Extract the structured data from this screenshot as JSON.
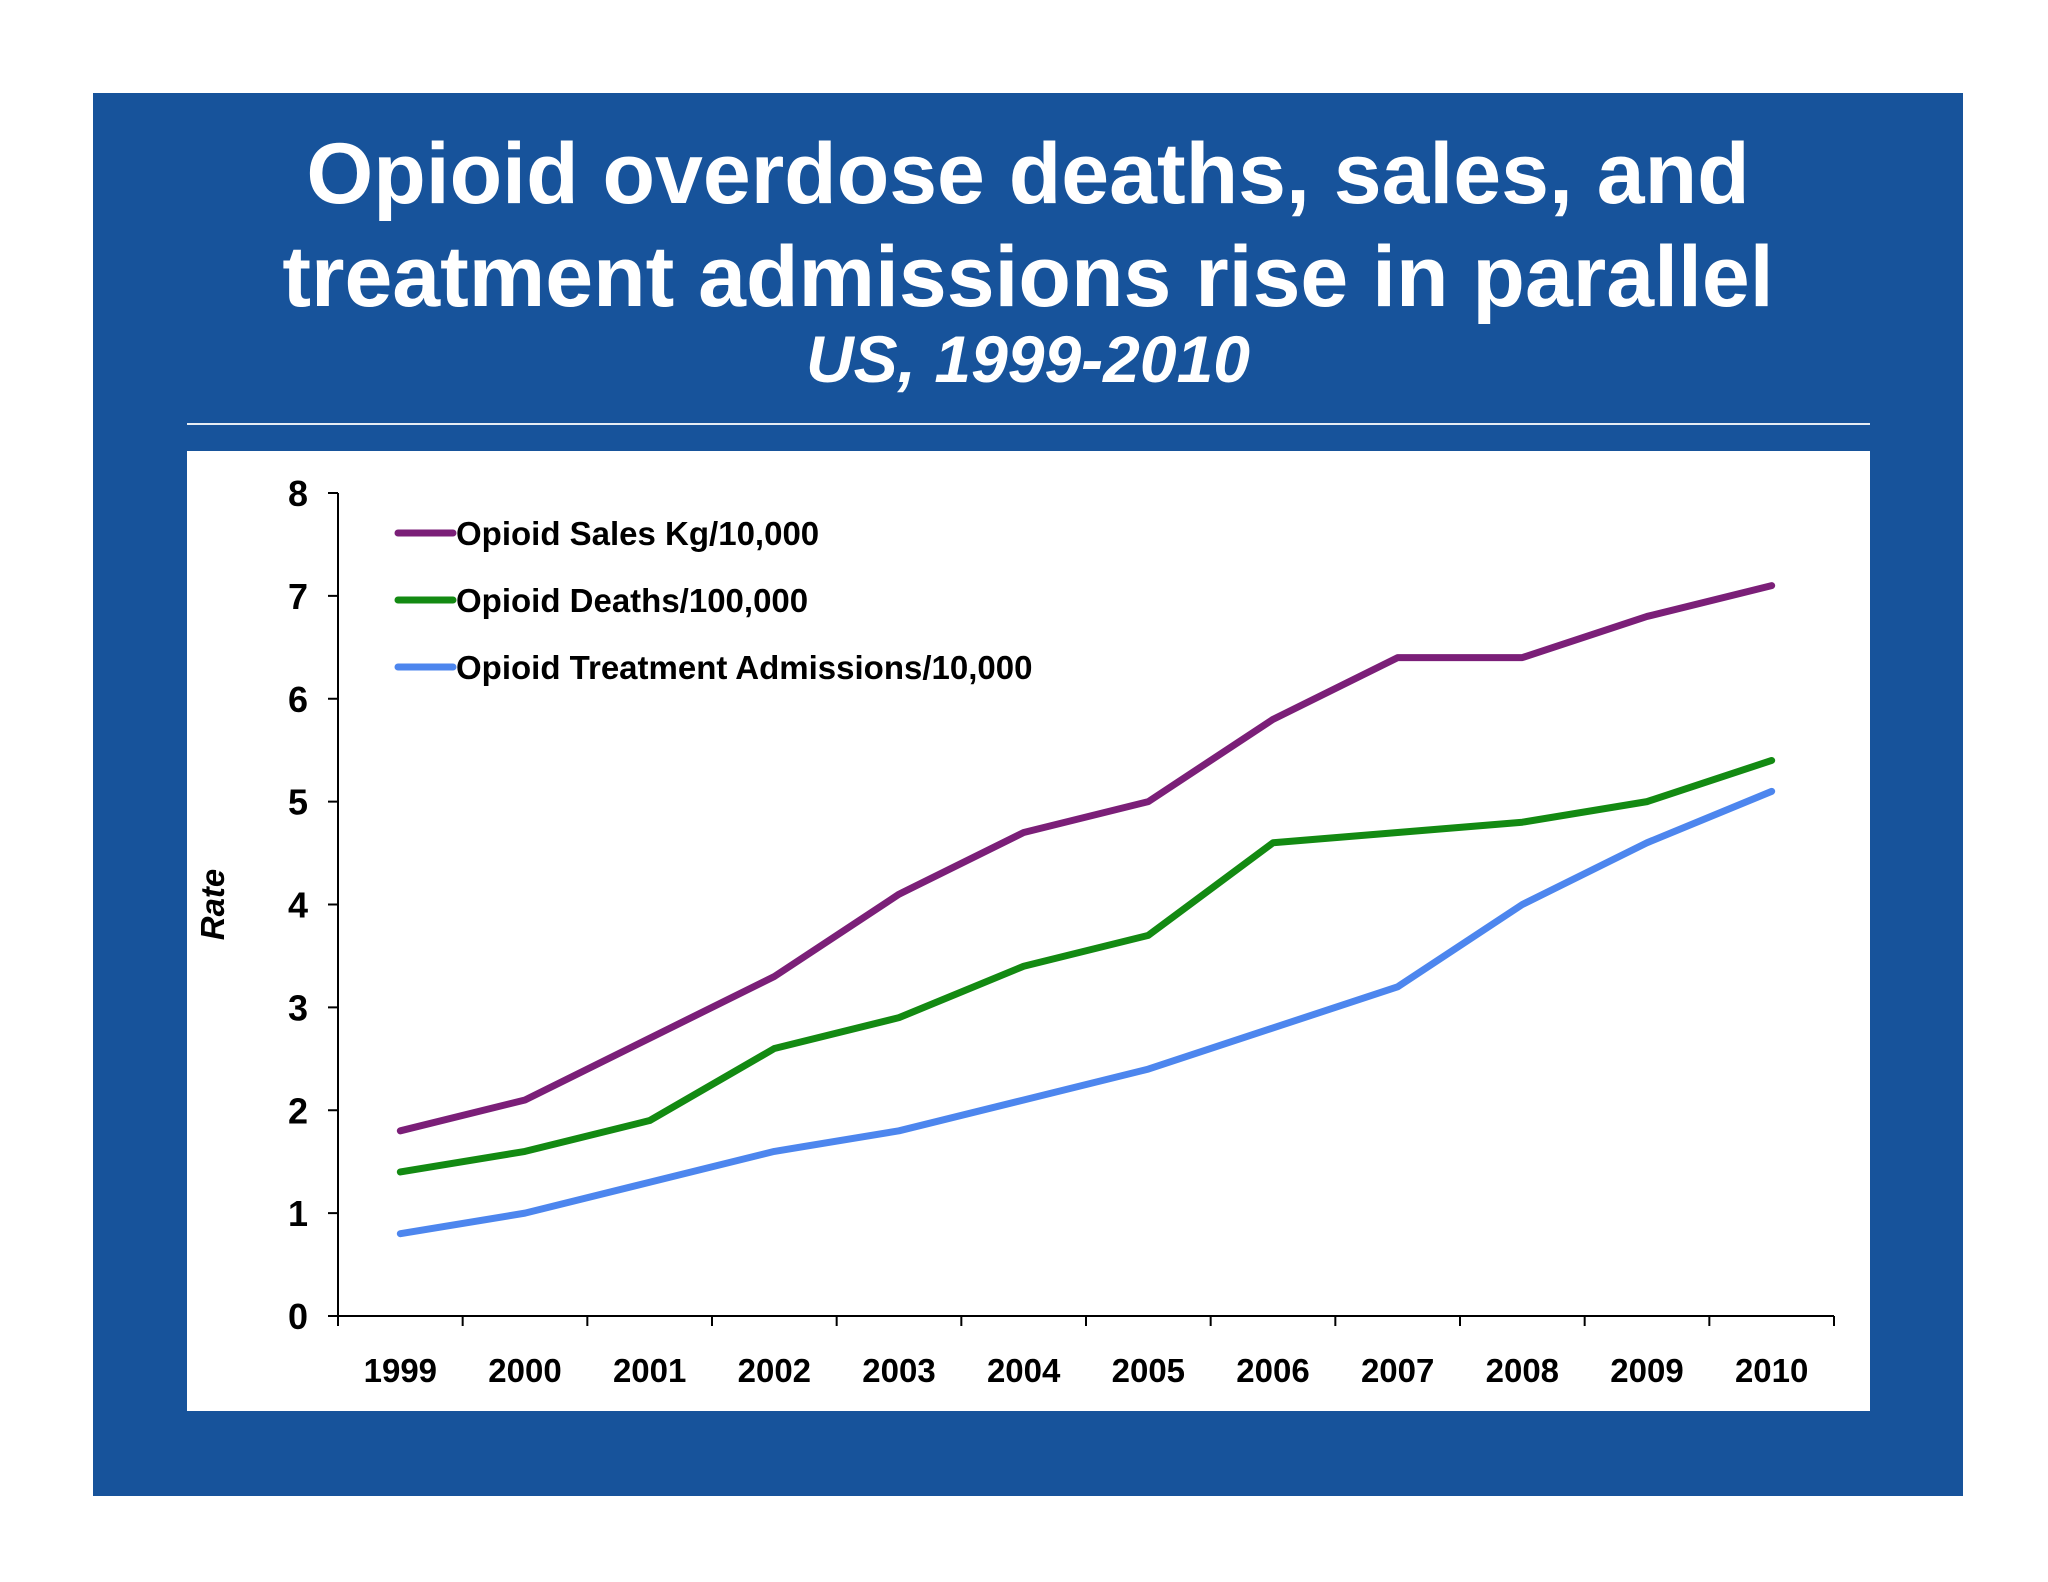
{
  "slide": {
    "title_line1": "Opioid overdose deaths, sales, and",
    "title_line2": "treatment admissions rise in parallel",
    "subtitle": "US, 1999-2010",
    "background_color": "#17539b"
  },
  "chart_data": {
    "type": "line",
    "title": "Opioid overdose deaths, sales, and treatment admissions rise in parallel",
    "subtitle": "US, 1999-2010",
    "xlabel": "",
    "ylabel": "Rate",
    "x": [
      "1999",
      "2000",
      "2001",
      "2002",
      "2003",
      "2004",
      "2005",
      "2006",
      "2007",
      "2008",
      "2009",
      "2010"
    ],
    "ylim": [
      0,
      8
    ],
    "yticks": [
      0,
      1,
      2,
      3,
      4,
      5,
      6,
      7,
      8
    ],
    "grid": false,
    "legend_position": "top-left",
    "series": [
      {
        "name": "Opioid Sales Kg/10,000",
        "color": "#7b1f78",
        "values": [
          1.8,
          2.1,
          2.7,
          3.3,
          4.1,
          4.7,
          5.0,
          5.8,
          6.4,
          6.4,
          6.8,
          7.1
        ]
      },
      {
        "name": "Opioid Deaths/100,000",
        "color": "#138a12",
        "values": [
          1.4,
          1.6,
          1.9,
          2.6,
          2.9,
          3.4,
          3.7,
          4.6,
          4.7,
          4.8,
          5.0,
          5.4
        ]
      },
      {
        "name": "Opioid Treatment Admissions/10,000",
        "color": "#4d86ee",
        "values": [
          0.8,
          1.0,
          1.3,
          1.6,
          1.8,
          2.1,
          2.4,
          2.8,
          3.2,
          4.0,
          4.6,
          5.1
        ]
      }
    ]
  }
}
